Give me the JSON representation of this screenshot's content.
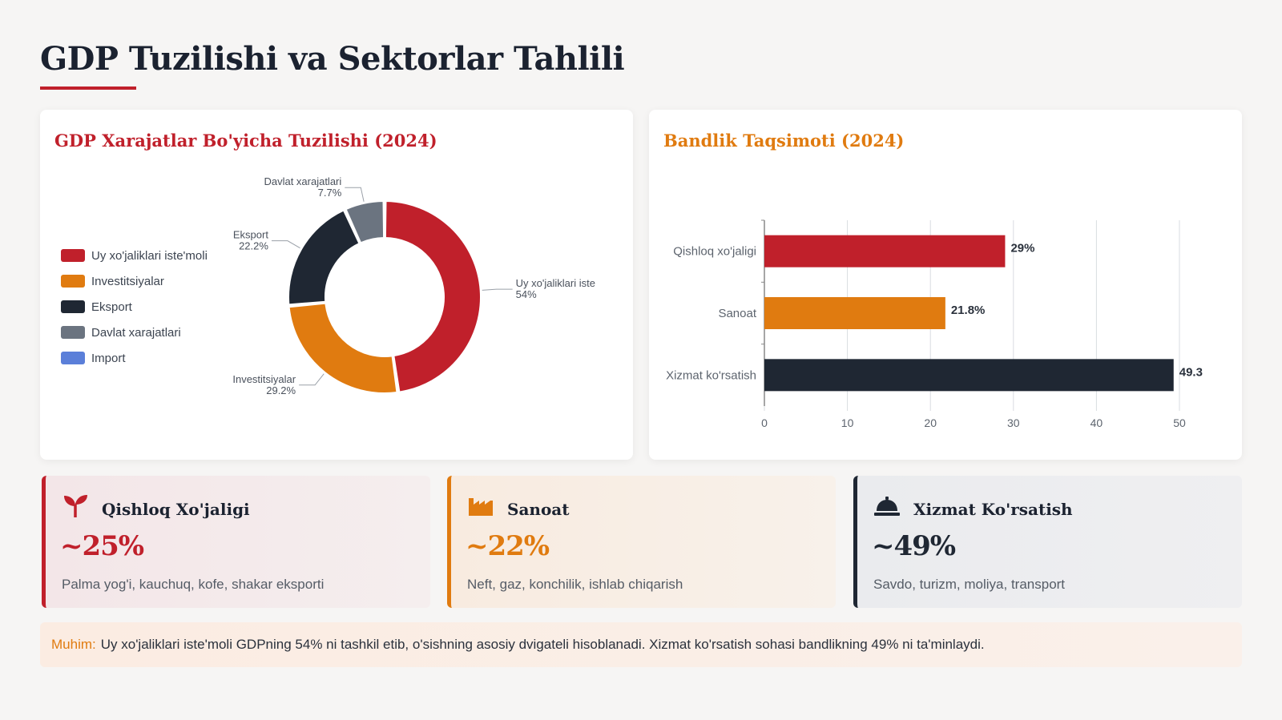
{
  "page": {
    "title": "GDP Tuzilishi va Sektorlar Tahlili"
  },
  "colors": {
    "red": "#c0202b",
    "orange": "#e07b10",
    "navy": "#1f2733",
    "gray": "#6b7480",
    "blue": "#5b7fd9"
  },
  "chart_data": [
    {
      "type": "pie",
      "variant": "donut",
      "title": "GDP Xarajatlar Bo'yicha Tuzilishi (2024)",
      "legend_position": "left",
      "labels": [
        "Uy xo'jaliklari iste'moli",
        "Investitsiyalar",
        "Eksport",
        "Davlat xarajatlari",
        "Import"
      ],
      "values": [
        54,
        29.2,
        22.2,
        7.7,
        0
      ],
      "colors": [
        "#c0202b",
        "#e07b10",
        "#1f2733",
        "#6b7480",
        "#5b7fd9"
      ],
      "slice_labels": [
        {
          "name": "Uy xo'jaliklari iste",
          "value": "54%"
        },
        {
          "name": "Investitsiyalar",
          "value": "29.2%"
        },
        {
          "name": "Eksport",
          "value": "22.2%"
        },
        {
          "name": "Davlat xarajatlari",
          "value": "7.7%"
        }
      ]
    },
    {
      "type": "bar",
      "orientation": "horizontal",
      "title": "Bandlik Taqsimoti (2024)",
      "categories": [
        "Qishloq xo'jaligi",
        "Sanoat",
        "Xizmat ko'rsatish"
      ],
      "values": [
        29,
        21.8,
        49.3
      ],
      "data_labels": [
        "29%",
        "21.8%",
        "49.3"
      ],
      "colors": [
        "#c0202b",
        "#e07b10",
        "#1f2733"
      ],
      "xlim": [
        0,
        50
      ],
      "xticks": [
        "0",
        "10",
        "20",
        "30",
        "40",
        "50"
      ],
      "grid": true
    }
  ],
  "sectors": [
    {
      "name": "Qishloq Xo'jaligi",
      "pct": "~25%",
      "desc": "Palma yog'i, kauchuq, kofe, shakar eksporti",
      "icon": "seedling-icon"
    },
    {
      "name": "Sanoat",
      "pct": "~22%",
      "desc": "Neft, gaz, konchilik, ishlab chiqarish",
      "icon": "factory-icon"
    },
    {
      "name": "Xizmat Ko'rsatish",
      "pct": "~49%",
      "desc": "Savdo, turizm, moliya, transport",
      "icon": "service-bell-icon"
    }
  ],
  "note": {
    "label": "Muhim:",
    "text": "Uy xo'jaliklari iste'moli GDPning 54% ni tashkil etib, o'sishning asosiy dvigateli hisoblanadi. Xizmat ko'rsatish sohasi bandlikning 49% ni ta'minlaydi."
  }
}
